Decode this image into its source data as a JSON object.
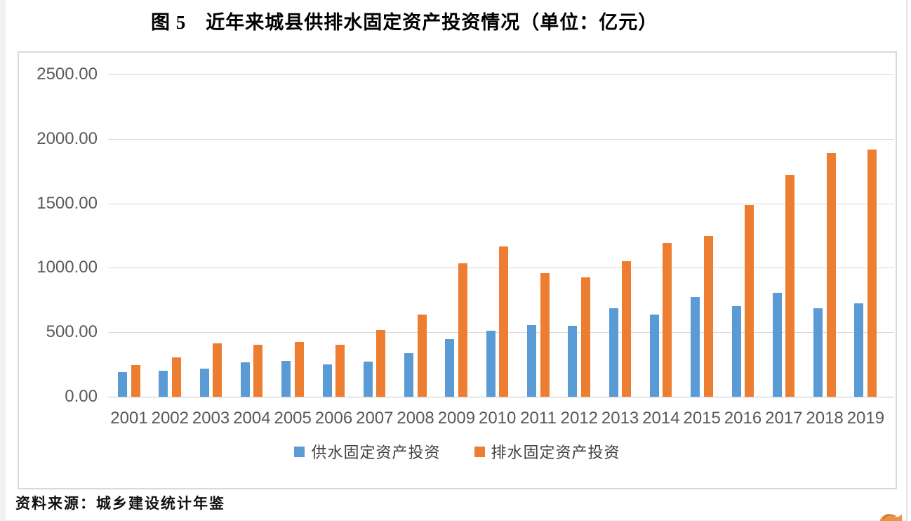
{
  "page": {
    "title": "图 5　近年来城县供排水固定资产投资情况（单位：亿元）",
    "source": "资料来源：城乡建设统计年鉴"
  },
  "chart_data": {
    "type": "bar",
    "title": "图 5 近年来城县供排水固定资产投资情况（单位：亿元）",
    "unit": "亿元",
    "categories": [
      "2001",
      "2002",
      "2003",
      "2004",
      "2005",
      "2006",
      "2007",
      "2008",
      "2009",
      "2010",
      "2011",
      "2012",
      "2013",
      "2014",
      "2015",
      "2016",
      "2017",
      "2018",
      "2019"
    ],
    "series": [
      {
        "name": "供水固定资产投资",
        "color": "#5B9BD5",
        "values": [
          190,
          200,
          220,
          268,
          278,
          249,
          273,
          340,
          445,
          511,
          554,
          550,
          684,
          638,
          774,
          703,
          804,
          684,
          726
        ]
      },
      {
        "name": "排水固定资产投资",
        "color": "#ED7D31",
        "values": [
          245,
          304,
          414,
          403,
          425,
          401,
          519,
          636,
          1035,
          1164,
          961,
          924,
          1049,
          1194,
          1246,
          1486,
          1722,
          1891,
          1917
        ]
      }
    ],
    "ylim": [
      0,
      2500
    ],
    "ytick_values": [
      0,
      500,
      1000,
      1500,
      2000,
      2500
    ],
    "ytick_labels": [
      "0.00",
      "500.00",
      "1000.00",
      "1500.00",
      "2000.00",
      "2500.00"
    ],
    "grid": true,
    "legend_position": "bottom",
    "colors": {
      "grid": "#d9d9d9",
      "axis_text": "#595959",
      "border": "#d9d9d9"
    }
  }
}
